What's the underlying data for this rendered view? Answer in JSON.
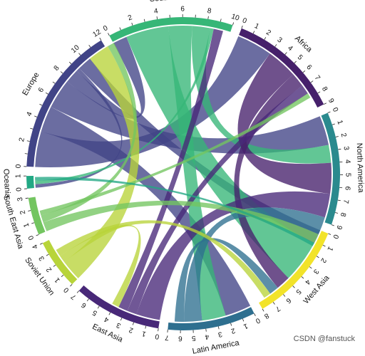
{
  "chart_data": {
    "type": "chord",
    "regions": [
      {
        "name": "Europe",
        "color": "#414487",
        "max_tick": 12,
        "tick_step": 2
      },
      {
        "name": "South Asia",
        "color": "#36b677",
        "max_tick": 10,
        "tick_step": 2
      },
      {
        "name": "Africa",
        "color": "#46206b",
        "max_tick": 9,
        "tick_step": 1
      },
      {
        "name": "North America",
        "color": "#2a8a8e",
        "max_tick": 9,
        "tick_step": 1
      },
      {
        "name": "West Asia",
        "color": "#f2e32a",
        "max_tick": 8,
        "tick_step": 1
      },
      {
        "name": "Latin America",
        "color": "#2e6f8f",
        "max_tick": 7,
        "tick_step": 1
      },
      {
        "name": "East Asia",
        "color": "#482878",
        "max_tick": 7,
        "tick_step": 1
      },
      {
        "name": "Soviet Union",
        "color": "#b8d43a",
        "max_tick": 4,
        "tick_step": 1
      },
      {
        "name": "South East Asia",
        "color": "#73c560",
        "max_tick": 3,
        "tick_step": 1
      },
      {
        "name": "Oceania",
        "color": "#22a884",
        "max_tick": 1,
        "tick_step": 1
      }
    ],
    "flows": [
      {
        "from": "Europe",
        "to": "Africa",
        "value": 3.0
      },
      {
        "from": "Europe",
        "to": "Latin America",
        "value": 2.2
      },
      {
        "from": "Europe",
        "to": "North America",
        "value": 2.5
      },
      {
        "from": "Europe",
        "to": "South Asia",
        "value": 1.2
      },
      {
        "from": "Europe",
        "to": "Oceania",
        "value": 0.3
      },
      {
        "from": "Europe",
        "to": "West Asia",
        "value": 1.2
      },
      {
        "from": "South Asia",
        "to": "West Asia",
        "value": 3.6
      },
      {
        "from": "South Asia",
        "to": "Latin America",
        "value": 2.0
      },
      {
        "from": "South Asia",
        "to": "North America",
        "value": 1.5
      },
      {
        "from": "South Asia",
        "to": "Oceania",
        "value": 0.3
      },
      {
        "from": "Africa",
        "to": "North America",
        "value": 2.6
      },
      {
        "from": "Africa",
        "to": "West Asia",
        "value": 1.2
      },
      {
        "from": "East Asia",
        "to": "North America",
        "value": 2.0
      },
      {
        "from": "East Asia",
        "to": "Africa",
        "value": 0.8
      },
      {
        "from": "East Asia",
        "to": "South Asia",
        "value": 0.8
      },
      {
        "from": "Latin America",
        "to": "North America",
        "value": 1.5
      },
      {
        "from": "Latin America",
        "to": "West Asia",
        "value": 0.8
      },
      {
        "from": "Soviet Union",
        "to": "Europe",
        "value": 1.8
      },
      {
        "from": "Soviet Union",
        "to": "East Asia",
        "value": 0.6
      },
      {
        "from": "Soviet Union",
        "to": "West Asia",
        "value": 0.6
      },
      {
        "from": "South East Asia",
        "to": "North America",
        "value": 0.8
      },
      {
        "from": "South East Asia",
        "to": "Europe",
        "value": 0.6
      },
      {
        "from": "South East Asia",
        "to": "Africa",
        "value": 0.4
      },
      {
        "from": "Oceania",
        "to": "North America",
        "value": 0.3
      }
    ]
  },
  "watermark": "CSDN @fanstuck"
}
